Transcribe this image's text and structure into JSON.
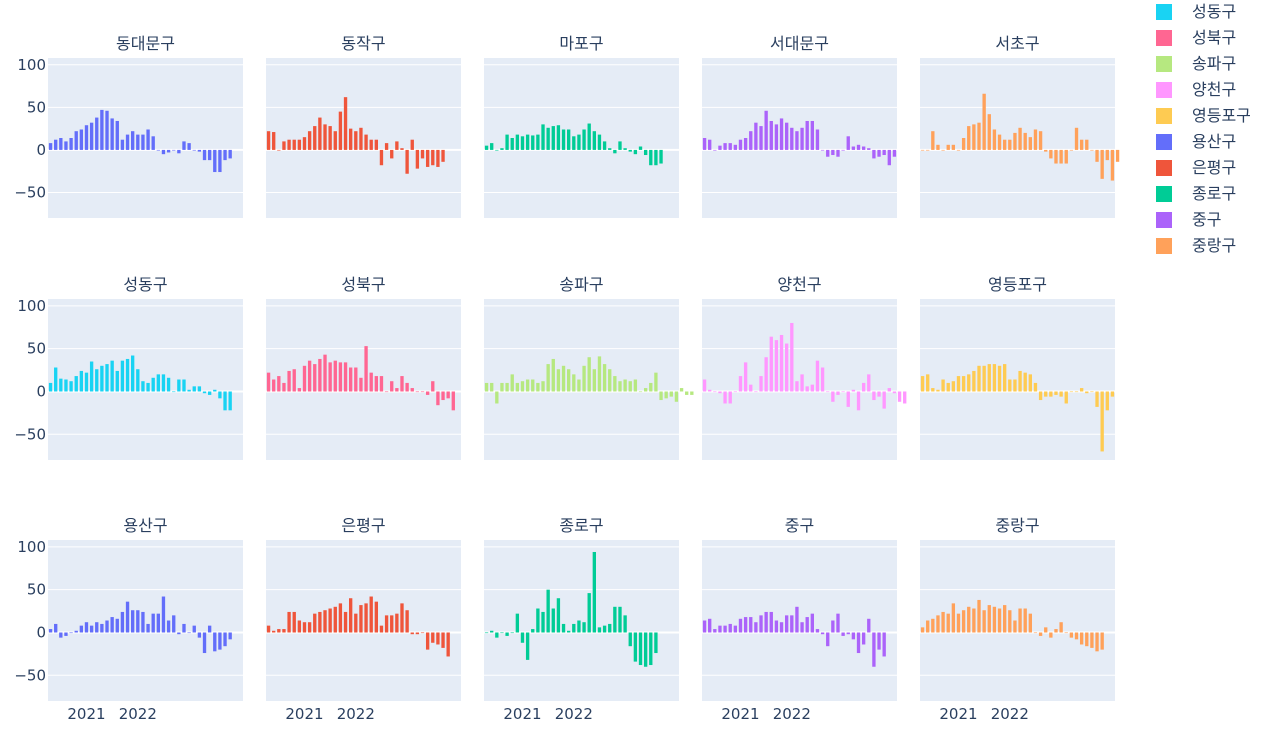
{
  "chart_data": {
    "type": "bar",
    "facet_layout": {
      "rows": 3,
      "cols": 5
    },
    "y_range": [
      -80,
      108
    ],
    "y_ticks": [
      100,
      50,
      0,
      -50
    ],
    "x_ticks": [
      "2021",
      "2022"
    ],
    "x_tick_index": [
      9,
      19
    ],
    "gridlines": true,
    "legend_position": "right",
    "panels": [
      {
        "name": "동대문구",
        "color": "#636efa",
        "values": [
          8,
          12,
          14,
          10,
          14,
          22,
          24,
          29,
          32,
          38,
          47,
          46,
          37,
          34,
          12,
          18,
          22,
          18,
          18,
          24,
          16,
          0,
          -5,
          -3,
          0,
          -4,
          10,
          8,
          0,
          -2,
          -12,
          -12,
          -26,
          -26,
          -12,
          -10
        ]
      },
      {
        "name": "동작구",
        "color": "#ef553b",
        "values": [
          22,
          21,
          0,
          10,
          12,
          12,
          12,
          15,
          22,
          28,
          38,
          30,
          28,
          22,
          45,
          62,
          25,
          22,
          26,
          18,
          12,
          12,
          -18,
          8,
          -10,
          10,
          2,
          -28,
          12,
          -22,
          -10,
          -20,
          -18,
          -20,
          -14
        ]
      },
      {
        "name": "마포구",
        "color": "#00cc96",
        "values": [
          5,
          8,
          0,
          2,
          18,
          14,
          18,
          16,
          18,
          17,
          18,
          30,
          26,
          28,
          29,
          24,
          24,
          16,
          18,
          24,
          31,
          22,
          18,
          10,
          2,
          -4,
          10,
          2,
          -2,
          -5,
          4,
          -6,
          -18,
          -18,
          -16
        ]
      },
      {
        "name": "서대문구",
        "color": "#ab63fa",
        "values": [
          14,
          12,
          0,
          5,
          8,
          8,
          6,
          12,
          14,
          22,
          32,
          28,
          46,
          34,
          30,
          37,
          32,
          26,
          22,
          26,
          34,
          34,
          24,
          0,
          -8,
          -6,
          -8,
          0,
          16,
          4,
          6,
          4,
          2,
          -10,
          -8,
          -6,
          -18,
          -8
        ]
      },
      {
        "name": "서초구",
        "color": "#ffa15a",
        "values": [
          0,
          0,
          22,
          6,
          0,
          6,
          6,
          0,
          14,
          28,
          30,
          32,
          66,
          42,
          24,
          18,
          12,
          12,
          20,
          26,
          20,
          15,
          24,
          22,
          -2,
          -10,
          -16,
          -16,
          -16,
          0,
          26,
          12,
          12,
          0,
          -14,
          -34,
          -12,
          -36,
          -14
        ]
      },
      {
        "name": "성동구",
        "color": "#19d3f3",
        "values": [
          10,
          28,
          15,
          14,
          12,
          18,
          24,
          22,
          35,
          26,
          30,
          32,
          36,
          24,
          36,
          38,
          42,
          26,
          12,
          10,
          16,
          20,
          20,
          16,
          0,
          14,
          14,
          2,
          6,
          6,
          -2,
          -4,
          2,
          -8,
          -22,
          -22
        ]
      },
      {
        "name": "성북구",
        "color": "#ff6692",
        "values": [
          22,
          14,
          18,
          10,
          24,
          26,
          4,
          30,
          36,
          32,
          38,
          43,
          34,
          36,
          34,
          34,
          28,
          28,
          16,
          53,
          22,
          18,
          18,
          0,
          12,
          4,
          18,
          10,
          4,
          0,
          0,
          -4,
          12,
          -16,
          -10,
          -8,
          -22
        ]
      },
      {
        "name": "송파구",
        "color": "#b6e880",
        "values": [
          10,
          10,
          -14,
          10,
          10,
          20,
          10,
          12,
          14,
          14,
          10,
          12,
          32,
          38,
          26,
          30,
          26,
          20,
          14,
          30,
          40,
          26,
          41,
          32,
          26,
          18,
          12,
          14,
          12,
          14,
          0,
          4,
          10,
          22,
          -10,
          -8,
          -6,
          -12,
          4,
          -4,
          -4
        ]
      },
      {
        "name": "양천구",
        "color": "#ff97ff",
        "values": [
          14,
          2,
          0,
          -2,
          -14,
          -14,
          0,
          18,
          34,
          8,
          0,
          18,
          40,
          64,
          60,
          66,
          56,
          80,
          12,
          20,
          6,
          8,
          36,
          28,
          0,
          -12,
          -4,
          0,
          -18,
          2,
          -22,
          10,
          20,
          -10,
          -6,
          -20,
          4,
          -2,
          -12,
          -14
        ]
      },
      {
        "name": "영등포구",
        "color": "#fecb52",
        "values": [
          18,
          20,
          4,
          2,
          14,
          10,
          12,
          18,
          18,
          20,
          24,
          30,
          30,
          32,
          32,
          30,
          32,
          14,
          14,
          24,
          22,
          20,
          10,
          -10,
          -6,
          -6,
          -4,
          -6,
          -14,
          0,
          0,
          4,
          -2,
          0,
          -18,
          -70,
          -22,
          -6
        ]
      },
      {
        "name": "용산구",
        "color": "#636efa",
        "values": [
          4,
          10,
          -6,
          -4,
          0,
          2,
          8,
          12,
          8,
          12,
          10,
          14,
          18,
          16,
          24,
          36,
          26,
          26,
          24,
          10,
          22,
          22,
          42,
          14,
          20,
          -2,
          10,
          0,
          8,
          -6,
          -24,
          8,
          -22,
          -20,
          -16,
          -8
        ]
      },
      {
        "name": "은평구",
        "color": "#ef553b",
        "values": [
          8,
          2,
          4,
          4,
          24,
          24,
          14,
          12,
          12,
          22,
          24,
          26,
          28,
          30,
          34,
          24,
          40,
          22,
          32,
          34,
          42,
          36,
          8,
          20,
          20,
          22,
          34,
          26,
          -2,
          -2,
          0,
          -20,
          -12,
          -14,
          -18,
          -28
        ]
      },
      {
        "name": "종로구",
        "color": "#00cc96",
        "values": [
          0,
          2,
          -6,
          0,
          -4,
          0,
          22,
          -12,
          -32,
          4,
          28,
          24,
          50,
          28,
          40,
          10,
          2,
          10,
          14,
          12,
          46,
          94,
          6,
          8,
          10,
          30,
          30,
          20,
          -16,
          -34,
          -38,
          -40,
          -38,
          -24
        ]
      },
      {
        "name": "중구",
        "color": "#ab63fa",
        "values": [
          14,
          16,
          4,
          8,
          8,
          10,
          8,
          16,
          18,
          18,
          12,
          20,
          24,
          24,
          14,
          12,
          20,
          20,
          30,
          12,
          18,
          22,
          4,
          -2,
          -16,
          14,
          22,
          -4,
          -2,
          -8,
          -24,
          -14,
          16,
          -40,
          -20,
          -28
        ]
      },
      {
        "name": "중랑구",
        "color": "#ffa15a",
        "values": [
          6,
          14,
          16,
          20,
          24,
          22,
          34,
          22,
          26,
          30,
          28,
          38,
          26,
          32,
          30,
          28,
          32,
          26,
          14,
          28,
          28,
          22,
          0,
          -4,
          6,
          -6,
          4,
          12,
          0,
          -6,
          -8,
          -14,
          -16,
          -18,
          -22,
          -20
        ]
      }
    ],
    "legend": [
      {
        "name": "성동구",
        "color": "#19d3f3"
      },
      {
        "name": "성북구",
        "color": "#ff6692"
      },
      {
        "name": "송파구",
        "color": "#b6e880"
      },
      {
        "name": "양천구",
        "color": "#ff97ff"
      },
      {
        "name": "영등포구",
        "color": "#fecb52"
      },
      {
        "name": "용산구",
        "color": "#636efa"
      },
      {
        "name": "은평구",
        "color": "#ef553b"
      },
      {
        "name": "종로구",
        "color": "#00cc96"
      },
      {
        "name": "중구",
        "color": "#ab63fa"
      },
      {
        "name": "중랑구",
        "color": "#ffa15a"
      }
    ]
  }
}
